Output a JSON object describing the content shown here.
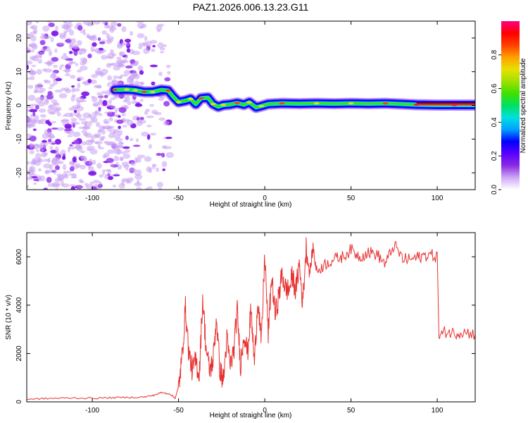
{
  "title": "PAZ1.2026.006.13.23.G11",
  "chart_data": [
    {
      "type": "heatmap",
      "name": "spectrogram",
      "xlabel": "Height of straight line (km)",
      "ylabel": "Frequency (Hz)",
      "xlim": [
        -138,
        122
      ],
      "ylim": [
        -25,
        25
      ],
      "xticks": [
        -100,
        -50,
        0,
        50,
        100
      ],
      "yticks": [
        -20,
        -10,
        0,
        10,
        20
      ],
      "xtick_labels": [
        "-100",
        "-50",
        "0",
        "50",
        "100"
      ],
      "ytick_labels": [
        "-20",
        "-10",
        "0",
        "10",
        "20"
      ],
      "ridge": [
        {
          "x": -87,
          "y": 4.6
        },
        {
          "x": -80,
          "y": 4.7
        },
        {
          "x": -75,
          "y": 4.5
        },
        {
          "x": -70,
          "y": 4.0
        },
        {
          "x": -65,
          "y": 4.0
        },
        {
          "x": -60,
          "y": 4.6
        },
        {
          "x": -56,
          "y": 4.4
        },
        {
          "x": -53,
          "y": 2.5
        },
        {
          "x": -50,
          "y": 1.0
        },
        {
          "x": -46,
          "y": 1.4
        },
        {
          "x": -43,
          "y": 1.9
        },
        {
          "x": -40,
          "y": 0.4
        },
        {
          "x": -37,
          "y": 2.1
        },
        {
          "x": -33,
          "y": 2.3
        },
        {
          "x": -30,
          "y": 0.4
        },
        {
          "x": -27,
          "y": -0.4
        },
        {
          "x": -24,
          "y": 0.1
        },
        {
          "x": -20,
          "y": 0.3
        },
        {
          "x": -16,
          "y": 0.7
        },
        {
          "x": -12,
          "y": 0.2
        },
        {
          "x": -9,
          "y": 0.9
        },
        {
          "x": -5,
          "y": -0.6
        },
        {
          "x": -2,
          "y": -0.2
        },
        {
          "x": 2,
          "y": 0.4
        },
        {
          "x": 10,
          "y": 0.6
        },
        {
          "x": 20,
          "y": 0.5
        },
        {
          "x": 30,
          "y": 0.6
        },
        {
          "x": 40,
          "y": 0.5
        },
        {
          "x": 50,
          "y": 0.6
        },
        {
          "x": 60,
          "y": 0.5
        },
        {
          "x": 70,
          "y": 0.6
        },
        {
          "x": 80,
          "y": 0.4
        },
        {
          "x": 88,
          "y": 0.2
        },
        {
          "x": 100,
          "y": 0.1
        },
        {
          "x": 110,
          "y": 0.1
        },
        {
          "x": 122,
          "y": 0.1
        }
      ],
      "reference_line": {
        "x_start": 88,
        "x_end": 122,
        "y": 0.75
      },
      "noise_region_x": [
        -138,
        -55
      ],
      "colorbar": {
        "label": "Normalized spectral amplitude",
        "range": [
          0.0,
          1.0
        ],
        "ticks": [
          0.0,
          0.2,
          0.4,
          0.6,
          0.8
        ],
        "tick_labels": [
          "0.0",
          "0.2",
          "0.4",
          "0.6",
          "0.8"
        ],
        "colors": [
          "#ffffff",
          "#cfa8f5",
          "#8a2be2",
          "#5a00ff",
          "#0000ff",
          "#00a0ff",
          "#00e0e0",
          "#00e060",
          "#40e000",
          "#a0e000",
          "#e8e000",
          "#ffa000",
          "#ff4000",
          "#ff0000",
          "#ff0080"
        ]
      }
    },
    {
      "type": "line",
      "name": "snr",
      "xlabel": "Height of straight line (km)",
      "ylabel": "SNR (10 * v/v)",
      "xlim": [
        -138,
        122
      ],
      "ylim": [
        0,
        7000
      ],
      "xticks": [
        -100,
        -50,
        0,
        50,
        100
      ],
      "yticks": [
        0,
        2000,
        4000,
        6000
      ],
      "xtick_labels": [
        "-100",
        "-50",
        "0",
        "50",
        "100"
      ],
      "ytick_labels": [
        "0",
        "2000",
        "4000",
        "6000"
      ],
      "color": "#e83030",
      "x": [
        -138,
        -130,
        -120,
        -110,
        -100,
        -90,
        -80,
        -70,
        -65,
        -60,
        -55,
        -52,
        -50,
        -48,
        -46,
        -44,
        -42,
        -40,
        -38,
        -36,
        -34,
        -32,
        -30,
        -28,
        -26,
        -24,
        -22,
        -20,
        -18,
        -16,
        -14,
        -12,
        -10,
        -8,
        -6,
        -4,
        -2,
        0,
        2,
        4,
        6,
        8,
        10,
        12,
        14,
        16,
        18,
        20,
        22,
        24,
        26,
        28,
        30,
        35,
        40,
        45,
        50,
        55,
        60,
        65,
        70,
        75,
        80,
        85,
        90,
        95,
        100,
        101,
        105,
        110,
        115,
        122
      ],
      "y": [
        110,
        130,
        150,
        160,
        150,
        170,
        180,
        200,
        260,
        380,
        330,
        150,
        600,
        1800,
        3900,
        2000,
        1300,
        1700,
        1100,
        4300,
        2200,
        1300,
        1700,
        3500,
        1300,
        900,
        2600,
        1500,
        2100,
        3800,
        1500,
        2900,
        2000,
        3800,
        1600,
        4300,
        2400,
        6100,
        2800,
        5200,
        3600,
        4300,
        5300,
        4700,
        4600,
        5200,
        4600,
        5700,
        4100,
        6400,
        5300,
        6400,
        5400,
        5700,
        5900,
        6000,
        6300,
        6000,
        6200,
        6100,
        5700,
        6500,
        5900,
        5900,
        6000,
        6100,
        6000,
        2750,
        2900,
        2850,
        2900,
        2800
      ]
    }
  ]
}
